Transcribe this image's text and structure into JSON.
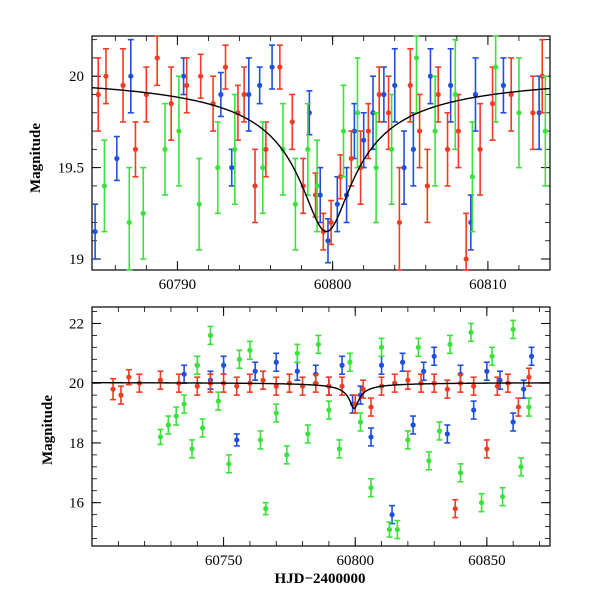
{
  "colors": {
    "blue": "#1f4fe0",
    "red": "#f03c22",
    "green": "#3ce23c",
    "model": "#000000"
  },
  "chart_data": [
    {
      "type": "scatter",
      "panel": "top",
      "xlim": [
        60784.5,
        60814
      ],
      "ylim": [
        20.22,
        18.94
      ],
      "xticks": [
        60790,
        60800,
        60810
      ],
      "xtick_labels": [
        "60790",
        "60800",
        "60810"
      ],
      "yticks": [
        19,
        19.5,
        20
      ],
      "ytick_labels": [
        "19",
        "19.5",
        "20"
      ],
      "xlabel": "",
      "ylabel": "Magnitude",
      "model_curve": {
        "t0": 60799.6,
        "peak_mag": 19.15,
        "base_mag": 20.03
      },
      "series": [
        {
          "name": "",
          "color": "blue",
          "points": [
            [
              60784.7,
              19.15,
              0.15
            ],
            [
              60786.1,
              19.55,
              0.12
            ],
            [
              60787.0,
              20.0,
              0.2
            ],
            [
              60790.4,
              20.0,
              0.1
            ],
            [
              60792.8,
              19.9,
              0.12
            ],
            [
              60793.5,
              19.5,
              0.1
            ],
            [
              60794.6,
              19.9,
              0.2
            ],
            [
              60795.3,
              19.95,
              0.1
            ],
            [
              60796.1,
              20.05,
              0.12
            ],
            [
              60798.5,
              19.8,
              0.12
            ],
            [
              60799.2,
              19.35,
              0.15
            ],
            [
              60799.7,
              19.1,
              0.12
            ],
            [
              60800.3,
              19.3,
              0.15
            ],
            [
              60800.9,
              19.35,
              0.15
            ],
            [
              60801.4,
              19.7,
              0.15
            ],
            [
              60802.0,
              19.65,
              0.15
            ],
            [
              60802.6,
              19.8,
              0.2
            ],
            [
              60803.3,
              19.9,
              0.15
            ],
            [
              60804.0,
              19.95,
              0.2
            ],
            [
              60804.6,
              19.5,
              0.2
            ],
            [
              60805.2,
              19.6,
              0.2
            ],
            [
              60806.3,
              20.0,
              0.15
            ],
            [
              60807.6,
              19.95,
              0.2
            ],
            [
              60808.9,
              19.2,
              0.15
            ],
            [
              60809.2,
              19.9,
              0.2
            ],
            [
              60811.0,
              19.95,
              0.15
            ],
            [
              60813.3,
              19.8,
              0.2
            ]
          ]
        },
        {
          "name": "",
          "color": "red",
          "points": [
            [
              60784.9,
              19.9,
              0.2
            ],
            [
              60785.4,
              20.0,
              0.15
            ],
            [
              60786.5,
              19.95,
              0.2
            ],
            [
              60787.3,
              19.6,
              0.15
            ],
            [
              60788.0,
              19.9,
              0.15
            ],
            [
              60788.7,
              20.1,
              0.15
            ],
            [
              60789.6,
              19.85,
              0.2
            ],
            [
              60790.6,
              19.95,
              0.15
            ],
            [
              60791.5,
              20.0,
              0.12
            ],
            [
              60792.3,
              19.85,
              0.15
            ],
            [
              60793.1,
              20.05,
              0.12
            ],
            [
              60793.9,
              19.8,
              0.15
            ],
            [
              60794.3,
              19.9,
              0.15
            ],
            [
              60795.0,
              19.4,
              0.2
            ],
            [
              60795.7,
              19.6,
              0.15
            ],
            [
              60796.6,
              20.05,
              0.12
            ],
            [
              60797.4,
              19.75,
              0.15
            ],
            [
              60798.1,
              19.4,
              0.15
            ],
            [
              60798.9,
              19.35,
              0.12
            ],
            [
              60799.4,
              19.15,
              0.1
            ],
            [
              60799.9,
              19.2,
              0.12
            ],
            [
              60800.5,
              19.45,
              0.12
            ],
            [
              60801.2,
              19.55,
              0.15
            ],
            [
              60801.8,
              19.5,
              0.2
            ],
            [
              60802.3,
              19.7,
              0.15
            ],
            [
              60803.0,
              19.9,
              0.15
            ],
            [
              60803.6,
              19.8,
              0.2
            ],
            [
              60804.3,
              19.2,
              0.3
            ],
            [
              60805.0,
              19.95,
              0.2
            ],
            [
              60805.6,
              19.7,
              0.2
            ],
            [
              60806.1,
              19.4,
              0.2
            ],
            [
              60806.8,
              19.9,
              0.15
            ],
            [
              60807.4,
              19.6,
              0.2
            ],
            [
              60808.1,
              19.7,
              0.2
            ],
            [
              60808.6,
              19.0,
              0.25
            ],
            [
              60809.5,
              19.6,
              0.25
            ],
            [
              60810.3,
              19.85,
              0.2
            ],
            [
              60811.5,
              19.9,
              0.2
            ],
            [
              60812.9,
              19.8,
              0.2
            ],
            [
              60813.5,
              20.0,
              0.2
            ]
          ]
        },
        {
          "name": "",
          "color": "green",
          "points": [
            [
              60785.3,
              19.4,
              0.25
            ],
            [
              60786.9,
              19.2,
              0.3
            ],
            [
              60787.8,
              19.25,
              0.25
            ],
            [
              60789.2,
              19.6,
              0.25
            ],
            [
              60790.1,
              19.7,
              0.3
            ],
            [
              60791.4,
              19.3,
              0.25
            ],
            [
              60792.6,
              19.5,
              0.25
            ],
            [
              60793.7,
              19.6,
              0.3
            ],
            [
              60795.5,
              19.5,
              0.25
            ],
            [
              60796.8,
              19.6,
              0.25
            ],
            [
              60797.6,
              19.3,
              0.25
            ],
            [
              60798.4,
              19.6,
              0.25
            ],
            [
              60799.0,
              19.4,
              0.25
            ],
            [
              60800.7,
              19.7,
              0.25
            ],
            [
              60801.6,
              19.8,
              0.3
            ],
            [
              60802.8,
              19.5,
              0.3
            ],
            [
              60803.8,
              19.6,
              0.3
            ],
            [
              60805.4,
              20.1,
              0.3
            ],
            [
              60806.6,
              19.7,
              0.3
            ],
            [
              60807.9,
              19.9,
              0.3
            ],
            [
              60809.0,
              19.45,
              0.3
            ],
            [
              60810.5,
              20.05,
              0.3
            ],
            [
              60812.0,
              19.8,
              0.3
            ],
            [
              60813.7,
              19.7,
              0.3
            ]
          ]
        }
      ]
    },
    {
      "type": "scatter",
      "panel": "bottom",
      "xlim": [
        60700,
        60874
      ],
      "ylim": [
        22.55,
        14.55
      ],
      "xticks": [
        60750,
        60800,
        60850
      ],
      "xtick_labels": [
        "60750",
        "60800",
        "60850"
      ],
      "yticks": [
        16,
        18,
        20,
        22
      ],
      "ytick_labels": [
        "16",
        "18",
        "20",
        "22"
      ],
      "xlabel": "HJD−2400000",
      "ylabel": "Magnitude",
      "model_curve": {
        "t0": 60799.6,
        "peak_mag": 19.15,
        "base_mag": 20.03
      },
      "series": [
        {
          "name": "",
          "color": "blue",
          "points": [
            [
              60735,
              20.3,
              0.3
            ],
            [
              60740,
              20.6,
              0.3
            ],
            [
              60745,
              20.1,
              0.3
            ],
            [
              60750,
              20.6,
              0.3
            ],
            [
              60755,
              18.1,
              0.2
            ],
            [
              60762,
              20.4,
              0.3
            ],
            [
              60770,
              20.7,
              0.3
            ],
            [
              60778,
              20.4,
              0.3
            ],
            [
              60785,
              20.3,
              0.3
            ],
            [
              60790,
              19.9,
              0.3
            ],
            [
              60795,
              20.6,
              0.3
            ],
            [
              60799,
              19.3,
              0.3
            ],
            [
              60802,
              19.6,
              0.3
            ],
            [
              60806,
              18.2,
              0.3
            ],
            [
              60810,
              20.6,
              0.3
            ],
            [
              60814,
              15.6,
              0.3
            ],
            [
              60818,
              20.7,
              0.3
            ],
            [
              60822,
              18.6,
              0.3
            ],
            [
              60826,
              20.4,
              0.3
            ],
            [
              60830,
              20.9,
              0.3
            ],
            [
              60835,
              18.3,
              0.3
            ],
            [
              60840,
              20.3,
              0.3
            ],
            [
              60845,
              19.1,
              0.3
            ],
            [
              60850,
              20.4,
              0.3
            ],
            [
              60855,
              20.1,
              0.3
            ],
            [
              60860,
              18.7,
              0.3
            ],
            [
              60864,
              19.8,
              0.3
            ],
            [
              60867,
              20.9,
              0.3
            ]
          ]
        },
        {
          "name": "",
          "color": "red",
          "points": [
            [
              60708,
              19.8,
              0.35
            ],
            [
              60711,
              19.6,
              0.3
            ],
            [
              60714,
              20.2,
              0.25
            ],
            [
              60718,
              20.0,
              0.3
            ],
            [
              60726,
              20.1,
              0.3
            ],
            [
              60733,
              20.0,
              0.3
            ],
            [
              60740,
              19.9,
              0.3
            ],
            [
              60745,
              20.0,
              0.3
            ],
            [
              60750,
              20.0,
              0.3
            ],
            [
              60755,
              19.9,
              0.3
            ],
            [
              60760,
              20.0,
              0.3
            ],
            [
              60765,
              20.1,
              0.3
            ],
            [
              60770,
              19.9,
              0.3
            ],
            [
              60775,
              20.0,
              0.3
            ],
            [
              60780,
              19.9,
              0.3
            ],
            [
              60785,
              20.0,
              0.3
            ],
            [
              60790,
              19.9,
              0.3
            ],
            [
              60795,
              19.9,
              0.3
            ],
            [
              60800,
              19.3,
              0.3
            ],
            [
              60803,
              19.8,
              0.3
            ],
            [
              60806,
              19.2,
              0.3
            ],
            [
              60810,
              19.9,
              0.3
            ],
            [
              60815,
              20.0,
              0.3
            ],
            [
              60820,
              20.1,
              0.3
            ],
            [
              60825,
              20.0,
              0.3
            ],
            [
              60830,
              20.0,
              0.3
            ],
            [
              60835,
              19.8,
              0.3
            ],
            [
              60838,
              15.8,
              0.3
            ],
            [
              60840,
              20.0,
              0.3
            ],
            [
              60845,
              19.9,
              0.3
            ],
            [
              60850,
              17.8,
              0.3
            ],
            [
              60854,
              19.9,
              0.3
            ],
            [
              60858,
              20.0,
              0.3
            ],
            [
              60862,
              19.2,
              0.3
            ],
            [
              60866,
              20.2,
              0.3
            ]
          ]
        },
        {
          "name": "",
          "color": "green",
          "points": [
            [
              60726,
              18.2,
              0.25
            ],
            [
              60729,
              18.6,
              0.3
            ],
            [
              60732,
              18.9,
              0.3
            ],
            [
              60735,
              19.3,
              0.3
            ],
            [
              60738,
              17.8,
              0.3
            ],
            [
              60740,
              20.6,
              0.3
            ],
            [
              60742,
              18.5,
              0.3
            ],
            [
              60745,
              21.6,
              0.3
            ],
            [
              60748,
              19.4,
              0.3
            ],
            [
              60752,
              17.3,
              0.3
            ],
            [
              60756,
              20.8,
              0.3
            ],
            [
              60760,
              21.1,
              0.3
            ],
            [
              60764,
              18.1,
              0.3
            ],
            [
              60766,
              15.8,
              0.2
            ],
            [
              60770,
              19.0,
              0.3
            ],
            [
              60774,
              17.6,
              0.3
            ],
            [
              60778,
              21.0,
              0.3
            ],
            [
              60782,
              18.3,
              0.3
            ],
            [
              60786,
              21.3,
              0.3
            ],
            [
              60790,
              19.1,
              0.3
            ],
            [
              60794,
              17.8,
              0.3
            ],
            [
              60798,
              20.7,
              0.3
            ],
            [
              60802,
              18.7,
              0.3
            ],
            [
              60806,
              16.5,
              0.3
            ],
            [
              60810,
              21.2,
              0.3
            ],
            [
              60813,
              15.1,
              0.25
            ],
            [
              60816,
              15.1,
              0.3
            ],
            [
              60820,
              18.1,
              0.3
            ],
            [
              60824,
              21.2,
              0.3
            ],
            [
              60828,
              17.4,
              0.3
            ],
            [
              60832,
              18.4,
              0.3
            ],
            [
              60836,
              21.3,
              0.3
            ],
            [
              60840,
              17.0,
              0.3
            ],
            [
              60844,
              21.7,
              0.3
            ],
            [
              60848,
              16.0,
              0.3
            ],
            [
              60852,
              20.9,
              0.3
            ],
            [
              60856,
              16.2,
              0.3
            ],
            [
              60860,
              21.8,
              0.3
            ],
            [
              60863,
              17.2,
              0.3
            ],
            [
              60866,
              19.2,
              0.3
            ]
          ]
        }
      ]
    }
  ]
}
